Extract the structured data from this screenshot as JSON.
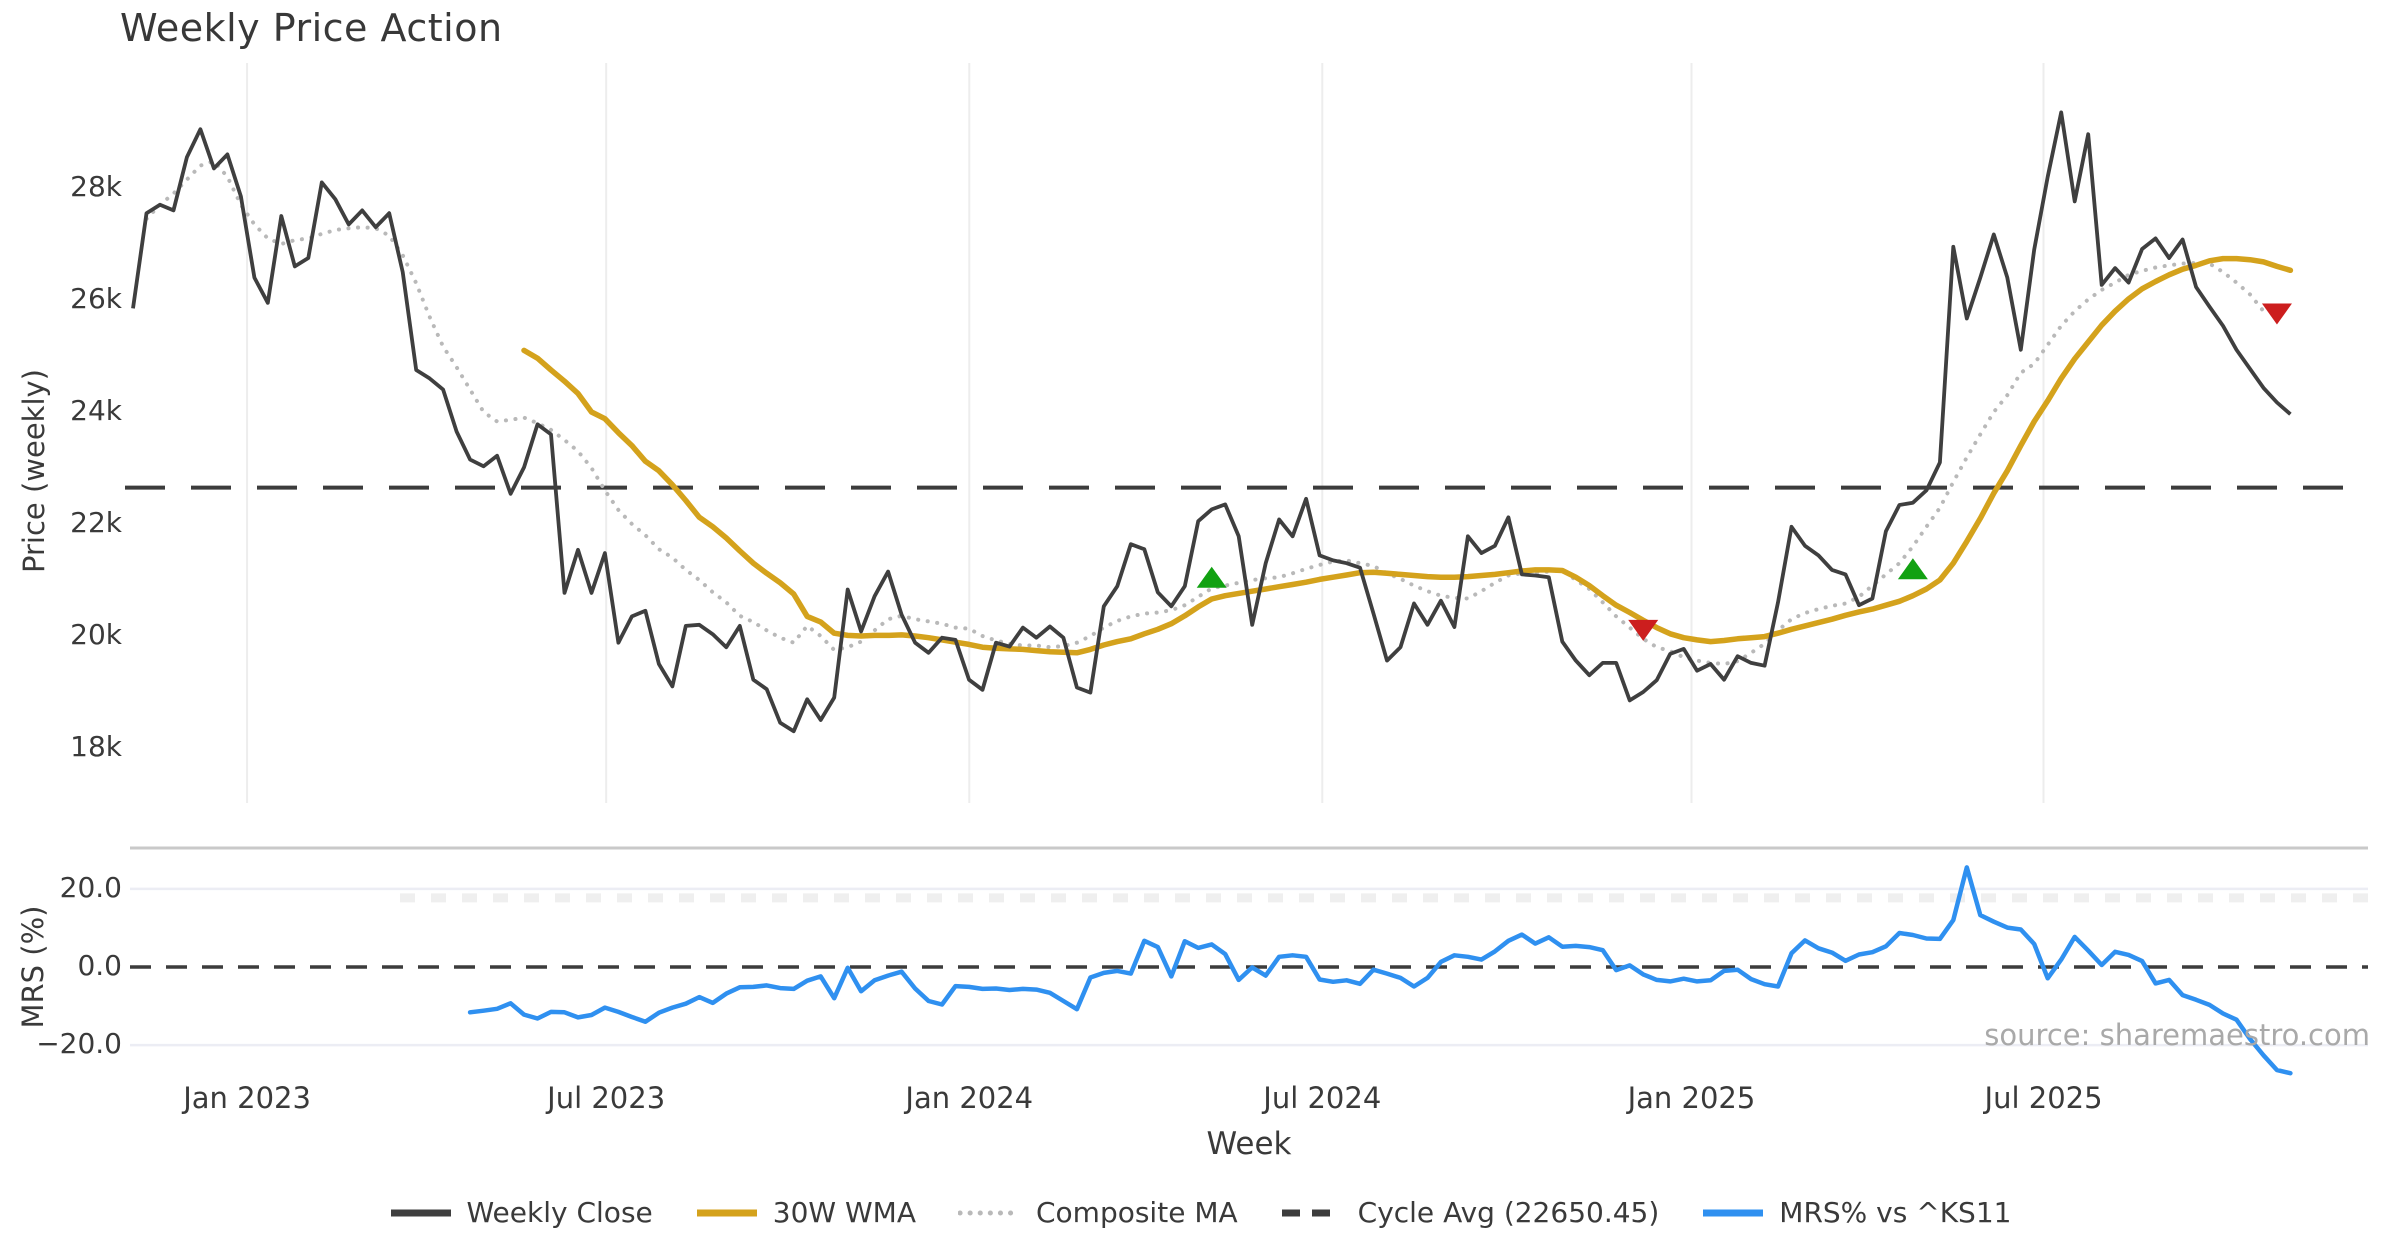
{
  "title": "Weekly Price Action",
  "source_text": "source: sharemaestro.com",
  "axes": {
    "price_axis_title": "Price (weekly)",
    "mrs_axis_title": "MRS (%)",
    "x_axis_title": "Week",
    "price_ticks": [
      {
        "label": "28k",
        "value": 28000
      },
      {
        "label": "26k",
        "value": 26000
      },
      {
        "label": "24k",
        "value": 24000
      },
      {
        "label": "22k",
        "value": 22000
      },
      {
        "label": "20k",
        "value": 20000
      },
      {
        "label": "18k",
        "value": 18000
      }
    ],
    "mrs_ticks": [
      {
        "label": "20.0",
        "value": 20
      },
      {
        "label": "0.0",
        "value": 0
      },
      {
        "label": "−20.0",
        "value": -20
      }
    ],
    "x_ticks": [
      {
        "label": "Jan 2023",
        "week": 8.46
      },
      {
        "label": "Jul 2023",
        "week": 35.09
      },
      {
        "label": "Jan 2024",
        "week": 62.02
      },
      {
        "label": "Jul 2024",
        "week": 88.2
      },
      {
        "label": "Jan 2025",
        "week": 115.58
      },
      {
        "label": "Jul 2025",
        "week": 141.69
      }
    ]
  },
  "colors": {
    "close": "#3f3f3f",
    "wma": "#d4a21c",
    "composite": "#b9b9b9",
    "cycle_avg": "#3c3c3c",
    "mrs": "#2f90f0",
    "buy": "#12a112",
    "sell": "#cc1e1e",
    "grid_vertical": "#ededed",
    "grid_horizontal": "#ecedf4",
    "panel_border": "#c9c9c9"
  },
  "legend": {
    "items": [
      {
        "label": "Weekly Close",
        "style": "solid",
        "color": "#3f3f3f"
      },
      {
        "label": "30W WMA",
        "style": "solid",
        "color": "#d4a21c"
      },
      {
        "label": "Composite MA",
        "style": "dotted",
        "color": "#b9b9b9"
      },
      {
        "label": "Cycle Avg (22650.45)",
        "style": "dashed",
        "color": "#3c3c3c"
      },
      {
        "label": "MRS% vs ^KS11",
        "style": "solid",
        "color": "#2f90f0"
      }
    ]
  },
  "chart_data": [
    {
      "type": "line",
      "panel": "price",
      "title": "Weekly Price Action",
      "xlabel": "Week",
      "ylabel": "Price (weekly)",
      "ylim": [
        16900,
        30300
      ],
      "grid": "vertical-only",
      "cycle_avg_value": 22650.45,
      "series": [
        {
          "name": "Weekly Close",
          "start_week": 0,
          "values": [
            25850,
            27550,
            27700,
            27600,
            28550,
            29050,
            28350,
            28600,
            27850,
            26400,
            25950,
            27500,
            26600,
            26750,
            28100,
            27800,
            27350,
            27600,
            27300,
            27550,
            26500,
            24750,
            24600,
            24400,
            23650,
            23150,
            23030,
            23220,
            22540,
            23010,
            23780,
            23600,
            20770,
            21540,
            20770,
            21480,
            19880,
            20350,
            20450,
            19500,
            19100,
            20180,
            20200,
            20030,
            19800,
            20180,
            19220,
            19050,
            18450,
            18300,
            18870,
            18500,
            18900,
            20830,
            20080,
            20710,
            21150,
            20380,
            19880,
            19700,
            19970,
            19930,
            19220,
            19040,
            19880,
            19810,
            20150,
            19970,
            20170,
            19970,
            19080,
            18990,
            20530,
            20890,
            21640,
            21550,
            20780,
            20530,
            20890,
            22050,
            22260,
            22350,
            21780,
            20200,
            21300,
            22080,
            21780,
            22450,
            21440,
            21350,
            21300,
            21220,
            20400,
            19560,
            19800,
            20580,
            20200,
            20630,
            20160,
            21780,
            21480,
            21610,
            22120,
            21100,
            21080,
            21050,
            19900,
            19560,
            19300,
            19520,
            19520,
            18850,
            19000,
            19210,
            19680,
            19770,
            19380,
            19500,
            19220,
            19640,
            19520,
            19470,
            20600,
            21950,
            21610,
            21440,
            21180,
            21100,
            20550,
            20670,
            21870,
            22340,
            22380,
            22600,
            23100,
            26950,
            25670,
            26400,
            27170,
            26400,
            25110,
            26900,
            28200,
            29350,
            27760,
            28960,
            26270,
            26570,
            26310,
            26910,
            27100,
            26750,
            27080,
            26230,
            25880,
            25540,
            25110,
            24770,
            24430,
            24170,
            23960
          ]
        },
        {
          "name": "30W WMA",
          "start_week": 29,
          "values": [
            25100,
            24960,
            24750,
            24550,
            24330,
            24000,
            23880,
            23630,
            23400,
            23120,
            22950,
            22700,
            22420,
            22120,
            21950,
            21750,
            21520,
            21300,
            21120,
            20950,
            20750,
            20350,
            20250,
            20050,
            20010,
            20000,
            20010,
            20010,
            20020,
            20000,
            19970,
            19930,
            19890,
            19850,
            19800,
            19780,
            19770,
            19760,
            19740,
            19720,
            19710,
            19700,
            19760,
            19840,
            19900,
            19950,
            20040,
            20120,
            20220,
            20360,
            20520,
            20660,
            20720,
            20760,
            20800,
            20840,
            20880,
            20920,
            20960,
            21010,
            21050,
            21090,
            21130,
            21140,
            21120,
            21100,
            21080,
            21060,
            21050,
            21050,
            21060,
            21080,
            21100,
            21130,
            21160,
            21180,
            21180,
            21170,
            21050,
            20900,
            20720,
            20550,
            20420,
            20280,
            20150,
            20040,
            19970,
            19930,
            19900,
            19920,
            19950,
            19970,
            19990,
            20050,
            20120,
            20180,
            20240,
            20300,
            20370,
            20430,
            20480,
            20550,
            20620,
            20720,
            20840,
            21000,
            21300,
            21690,
            22100,
            22550,
            22950,
            23400,
            23830,
            24200,
            24600,
            24950,
            25250,
            25550,
            25800,
            26020,
            26200,
            26330,
            26450,
            26550,
            26620,
            26700,
            26740,
            26740,
            26720,
            26680,
            26600,
            26530
          ]
        },
        {
          "name": "Composite MA",
          "start_week": 1,
          "values": [
            27450,
            27700,
            27900,
            28150,
            28400,
            28480,
            28200,
            27700,
            27350,
            27100,
            27000,
            27070,
            27100,
            27180,
            27250,
            27280,
            27300,
            27280,
            27150,
            26800,
            26300,
            25700,
            25170,
            24800,
            24400,
            24000,
            23830,
            23860,
            23900,
            23800,
            23680,
            23500,
            23300,
            23000,
            22600,
            22250,
            22000,
            21800,
            21550,
            21400,
            21180,
            21000,
            20780,
            20600,
            20360,
            20250,
            20100,
            19970,
            19880,
            20180,
            20000,
            19750,
            19800,
            19900,
            20100,
            20300,
            20360,
            20300,
            20260,
            20220,
            20150,
            20130,
            20000,
            19920,
            19860,
            19830,
            19830,
            19800,
            19820,
            19880,
            20000,
            20150,
            20270,
            20350,
            20400,
            20420,
            20460,
            20550,
            20700,
            20850,
            20900,
            20950,
            21000,
            21030,
            21050,
            21120,
            21200,
            21270,
            21330,
            21350,
            21300,
            21250,
            21120,
            21020,
            20900,
            20800,
            20720,
            20680,
            20670,
            20800,
            20950,
            21080,
            21120,
            21130,
            21150,
            21170,
            21000,
            20840,
            20600,
            20350,
            20150,
            19950,
            19800,
            19730,
            19620,
            19560,
            19520,
            19500,
            19550,
            19700,
            19860,
            20100,
            20300,
            20410,
            20480,
            20540,
            20580,
            20700,
            20900,
            21100,
            21300,
            21600,
            21950,
            22290,
            22750,
            23190,
            23600,
            24000,
            24300,
            24700,
            24860,
            25200,
            25540,
            25800,
            26010,
            26180,
            26310,
            26450,
            26520,
            26580,
            26620,
            26650,
            26660,
            26650,
            26500,
            26310,
            26100,
            25800
          ]
        }
      ],
      "signals": [
        {
          "type": "buy",
          "week": 80,
          "price": 21050
        },
        {
          "type": "sell",
          "week": 112,
          "price": 20100
        },
        {
          "type": "buy",
          "week": 132,
          "price": 21200
        },
        {
          "type": "sell",
          "week": 159,
          "price": 25750
        }
      ]
    },
    {
      "type": "line",
      "panel": "mrs",
      "xlabel": "Week",
      "ylabel": "MRS (%)",
      "ylim": [
        -31,
        30
      ],
      "zero_line": 0,
      "series": [
        {
          "name": "MRS% vs ^KS11",
          "start_week": 25,
          "values": [
            -11.6,
            -11.2,
            -10.7,
            -9.3,
            -12.2,
            -13.2,
            -11.5,
            -11.6,
            -12.9,
            -12.3,
            -10.4,
            -11.5,
            -12.8,
            -14.0,
            -11.7,
            -10.4,
            -9.4,
            -7.7,
            -9.2,
            -6.8,
            -5.2,
            -5.1,
            -4.7,
            -5.4,
            -5.6,
            -3.5,
            -2.4,
            -8.0,
            -0.2,
            -6.2,
            -3.4,
            -2.2,
            -1.2,
            -5.5,
            -8.7,
            -9.6,
            -4.9,
            -5.1,
            -5.6,
            -5.5,
            -5.9,
            -5.6,
            -5.8,
            -6.6,
            -8.7,
            -10.8,
            -2.7,
            -1.5,
            -1.0,
            -1.7,
            6.7,
            5.1,
            -2.4,
            6.6,
            4.9,
            5.8,
            3.3,
            -3.3,
            -0.1,
            -2.2,
            2.6,
            3.0,
            2.6,
            -3.2,
            -3.8,
            -3.4,
            -4.3,
            -0.7,
            -1.7,
            -2.8,
            -5.0,
            -2.8,
            1.3,
            3.0,
            2.6,
            1.9,
            4.0,
            6.7,
            8.3,
            6.0,
            7.6,
            5.2,
            5.4,
            5.1,
            4.3,
            -0.8,
            0.4,
            -1.9,
            -3.3,
            -3.7,
            -3.0,
            -3.7,
            -3.4,
            -1.0,
            -0.7,
            -3.1,
            -4.4,
            -5.0,
            3.5,
            6.8,
            4.8,
            3.7,
            1.6,
            3.2,
            3.8,
            5.3,
            8.7,
            8.2,
            7.3,
            7.2,
            12.0,
            25.5,
            13.3,
            11.6,
            10.1,
            9.6,
            5.9,
            -2.9,
            1.9,
            7.7,
            4.2,
            0.5,
            3.9,
            3.1,
            1.5,
            -4.2,
            -3.3,
            -7.2,
            -8.4,
            -9.7,
            -11.9,
            -13.5,
            -18.4,
            -22.6,
            -26.4,
            -27.2
          ]
        }
      ]
    }
  ]
}
